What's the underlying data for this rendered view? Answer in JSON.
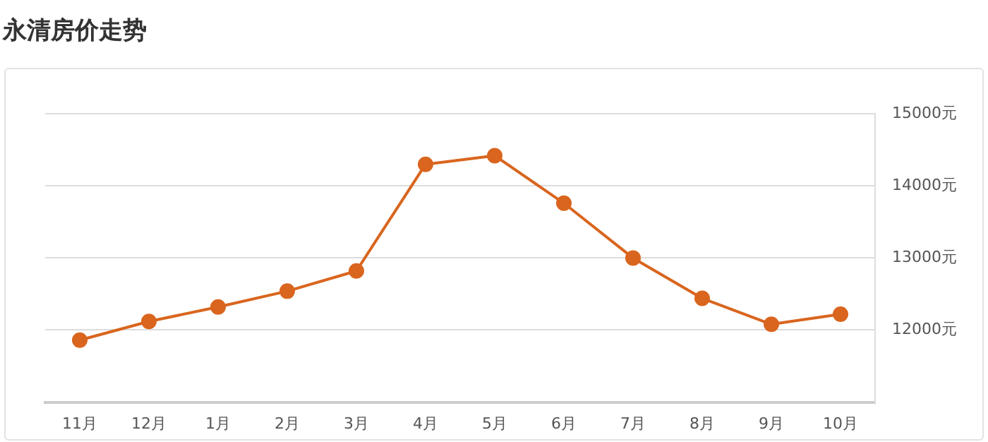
{
  "chart_data": {
    "type": "line",
    "title": "永清房价走势",
    "categories": [
      "11月",
      "12月",
      "1月",
      "2月",
      "3月",
      "4月",
      "5月",
      "6月",
      "7月",
      "8月",
      "9月",
      "10月"
    ],
    "series": [
      {
        "color": "#d9651e",
        "values": [
          11860,
          12120,
          12320,
          12540,
          12820,
          14300,
          14420,
          13760,
          13000,
          12440,
          12080,
          12220
        ]
      }
    ],
    "ylim": [
      11000,
      15000
    ],
    "yticks": [
      {
        "value": 12000,
        "label": "12000元"
      },
      {
        "value": 13000,
        "label": "13000元"
      },
      {
        "value": 14000,
        "label": "14000元"
      },
      {
        "value": 15000,
        "label": "15000元"
      }
    ],
    "grid": "y",
    "legend": false,
    "marker": "circle",
    "line_style": "solid"
  }
}
